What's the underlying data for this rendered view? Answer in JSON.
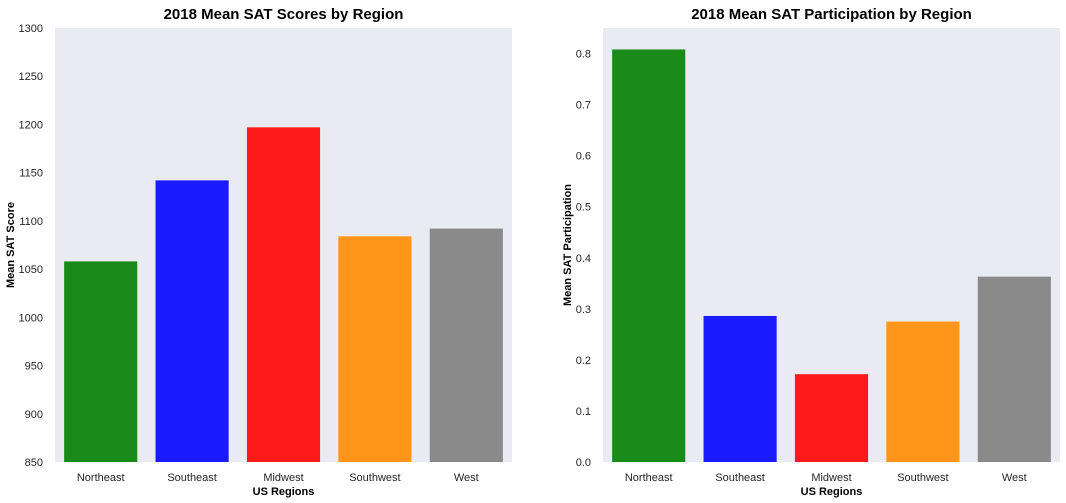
{
  "chart_data": [
    {
      "type": "bar",
      "title": "2018 Mean SAT Scores by Region",
      "xlabel": "US Regions",
      "ylabel": "Mean SAT Score",
      "categories": [
        "Northeast",
        "Southeast",
        "Midwest",
        "Southwest",
        "West"
      ],
      "values": [
        1058,
        1142,
        1197,
        1084,
        1092
      ],
      "colors": [
        "#1a8a1a",
        "#1a1aff",
        "#ff1a1a",
        "#ff961a",
        "#8a8a8a"
      ],
      "ylim": [
        850,
        1300
      ],
      "yticks": [
        850,
        900,
        950,
        1000,
        1050,
        1100,
        1150,
        1200,
        1250,
        1300
      ],
      "plot_background": "#eaeaf2",
      "grid": false,
      "legend": "none"
    },
    {
      "type": "bar",
      "title": "2018 Mean SAT Participation by Region",
      "xlabel": "US Regions",
      "ylabel": "Mean SAT Participation",
      "categories": [
        "Northeast",
        "Southeast",
        "Midwest",
        "Southwest",
        "West"
      ],
      "values": [
        0.808,
        0.286,
        0.172,
        0.275,
        0.363
      ],
      "colors": [
        "#1a8a1a",
        "#1a1aff",
        "#ff1a1a",
        "#ff961a",
        "#8a8a8a"
      ],
      "ylim": [
        0,
        0.85
      ],
      "yticks": [
        0.0,
        0.1,
        0.2,
        0.3,
        0.4,
        0.5,
        0.6,
        0.7,
        0.8
      ],
      "plot_background": "#eaeaf2",
      "grid": false,
      "legend": "none"
    }
  ]
}
